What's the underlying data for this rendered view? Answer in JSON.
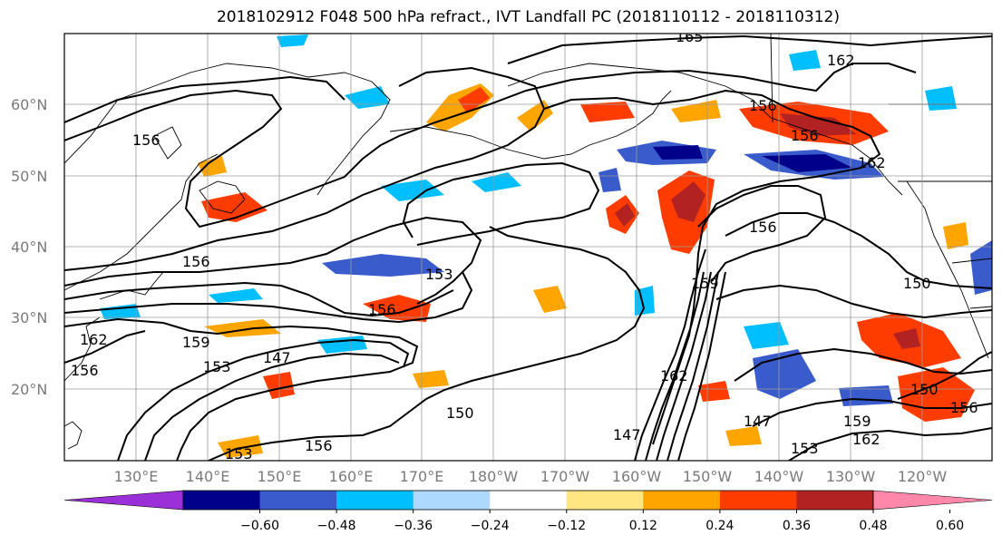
{
  "title": "2018102912 F048 500 hPa refract., IVT Landfall PC (2018110112 - 2018110312)",
  "lat_labels": [
    "60°N",
    "50°N",
    "40°N",
    "30°N",
    "20°N"
  ],
  "lon_labels": [
    "130°E",
    "140°E",
    "150°E",
    "160°E",
    "170°E",
    "180°W",
    "170°W",
    "160°W",
    "150°W",
    "140°W",
    "130°W",
    "120°W"
  ],
  "colorbar": {
    "colors": [
      "#9b30d9",
      "#00008b",
      "#3a5bcc",
      "#00bfff",
      "#add8ff",
      "#ffffff",
      "#ffe680",
      "#ffa500",
      "#ff3c00",
      "#b22222",
      "#ff88aa"
    ],
    "ticks": [
      "−0.60",
      "−0.48",
      "−0.36",
      "−0.24",
      "−0.12",
      "0.12",
      "0.24",
      "0.36",
      "0.48",
      "0.60"
    ]
  },
  "contour_labels": [
    {
      "text": "165"
    },
    {
      "text": "162"
    },
    {
      "text": "156"
    },
    {
      "text": "156"
    },
    {
      "text": "156"
    },
    {
      "text": "156"
    },
    {
      "text": "156"
    },
    {
      "text": "153"
    },
    {
      "text": "156"
    },
    {
      "text": "159"
    },
    {
      "text": "153"
    },
    {
      "text": "147"
    },
    {
      "text": "150"
    },
    {
      "text": "156"
    },
    {
      "text": "153"
    },
    {
      "text": "159"
    },
    {
      "text": "162"
    },
    {
      "text": "150"
    },
    {
      "text": "150"
    },
    {
      "text": "159"
    },
    {
      "text": "162"
    },
    {
      "text": "153"
    },
    {
      "text": "156"
    },
    {
      "text": "147"
    },
    {
      "text": "162"
    },
    {
      "text": "156"
    },
    {
      "text": "162"
    },
    {
      "text": "147"
    }
  ]
}
